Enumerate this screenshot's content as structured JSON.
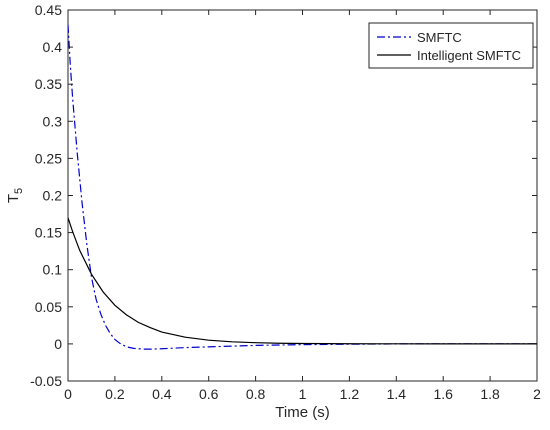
{
  "chart_data": {
    "type": "line",
    "xlabel": "Time (s)",
    "ylabel": {
      "main": "T",
      "sub": "5"
    },
    "xlim": [
      0,
      2
    ],
    "ylim": [
      -0.05,
      0.45
    ],
    "xticks": [
      0,
      0.2,
      0.4,
      0.6,
      0.8,
      1,
      1.2,
      1.4,
      1.6,
      1.8,
      2
    ],
    "xtick_labels": [
      "0",
      "0.2",
      "0.4",
      "0.6",
      "0.8",
      "1",
      "1.2",
      "1.4",
      "1.6",
      "1.8",
      "2"
    ],
    "yticks": [
      -0.05,
      0,
      0.05,
      0.1,
      0.15,
      0.2,
      0.25,
      0.3,
      0.35,
      0.4,
      0.45
    ],
    "ytick_labels": [
      "-0.05",
      "0",
      "0.05",
      "0.1",
      "0.15",
      "0.2",
      "0.25",
      "0.3",
      "0.35",
      "0.4",
      "0.45"
    ],
    "grid": false,
    "legend_position": "top-right",
    "series": [
      {
        "name": "SMFTC",
        "color": "#0000cc",
        "style": "dash-dot",
        "x": [
          0,
          0.01,
          0.02,
          0.04,
          0.06,
          0.08,
          0.1,
          0.12,
          0.14,
          0.16,
          0.18,
          0.2,
          0.22,
          0.25,
          0.28,
          0.32,
          0.36,
          0.4,
          0.5,
          0.6,
          0.8,
          1.0,
          1.2,
          1.4,
          1.6,
          1.8,
          2.0
        ],
        "values": [
          0.43,
          0.375,
          0.33,
          0.255,
          0.19,
          0.135,
          0.09,
          0.06,
          0.04,
          0.025,
          0.014,
          0.006,
          0.001,
          -0.004,
          -0.006,
          -0.007,
          -0.007,
          -0.0065,
          -0.005,
          -0.004,
          -0.002,
          -0.001,
          -0.0004,
          0,
          0,
          0,
          0
        ]
      },
      {
        "name": "Intelligent SMFTC",
        "color": "#000000",
        "style": "solid",
        "x": [
          0,
          0.02,
          0.05,
          0.1,
          0.15,
          0.2,
          0.25,
          0.3,
          0.35,
          0.4,
          0.5,
          0.6,
          0.7,
          0.8,
          0.9,
          1.0,
          1.2,
          1.4,
          1.6,
          1.8,
          2.0
        ],
        "values": [
          0.17,
          0.151,
          0.126,
          0.094,
          0.07,
          0.052,
          0.039,
          0.029,
          0.022,
          0.016,
          0.009,
          0.005,
          0.0028,
          0.0016,
          0.0009,
          0.0005,
          0.0002,
          0.0001,
          0,
          0,
          0
        ]
      }
    ]
  }
}
